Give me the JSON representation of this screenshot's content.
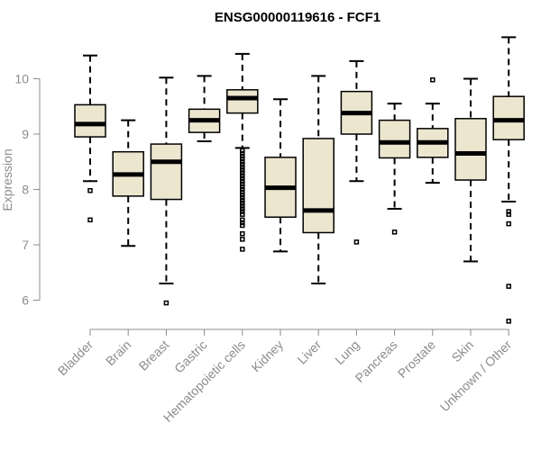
{
  "chart_data": {
    "type": "boxplot",
    "title": "ENSG00000119616 - FCF1",
    "xlabel": "",
    "ylabel": "Expression",
    "ylim": [
      5.5,
      10.9
    ],
    "yticks": [
      6,
      7,
      8,
      9,
      10
    ],
    "grid": false,
    "categories": [
      "Bladder",
      "Brain",
      "Breast",
      "Gastric",
      "Hematopoietic cells",
      "Kidney",
      "Liver",
      "Lung",
      "Pancreas",
      "Prostate",
      "Skin",
      "Unknown / Other"
    ],
    "series": [
      {
        "name": "Bladder",
        "whisker_low": 8.15,
        "q1": 8.95,
        "median": 9.18,
        "q3": 9.53,
        "whisker_high": 10.42,
        "outliers": [
          7.98,
          7.45
        ]
      },
      {
        "name": "Brain",
        "whisker_low": 6.98,
        "q1": 7.88,
        "median": 8.27,
        "q3": 8.68,
        "whisker_high": 9.25,
        "outliers": []
      },
      {
        "name": "Breast",
        "whisker_low": 6.3,
        "q1": 7.82,
        "median": 8.5,
        "q3": 8.82,
        "whisker_high": 10.02,
        "outliers": [
          5.95
        ]
      },
      {
        "name": "Gastric",
        "whisker_low": 8.87,
        "q1": 9.03,
        "median": 9.25,
        "q3": 9.45,
        "whisker_high": 10.05,
        "outliers": []
      },
      {
        "name": "Hematopoietic cells",
        "whisker_low": 8.75,
        "q1": 9.38,
        "median": 9.65,
        "q3": 9.8,
        "whisker_high": 10.45,
        "outliers": [
          8.7,
          8.65,
          8.6,
          8.55,
          8.5,
          8.45,
          8.4,
          8.35,
          8.3,
          8.25,
          8.2,
          8.15,
          8.1,
          8.05,
          8.0,
          7.95,
          7.9,
          7.85,
          7.8,
          7.75,
          7.7,
          7.65,
          7.6,
          7.55,
          7.45,
          7.4,
          7.35,
          7.2,
          7.1,
          6.92
        ]
      },
      {
        "name": "Kidney",
        "whisker_low": 6.88,
        "q1": 7.5,
        "median": 8.03,
        "q3": 8.58,
        "whisker_high": 9.63,
        "outliers": []
      },
      {
        "name": "Liver",
        "whisker_low": 6.3,
        "q1": 7.22,
        "median": 7.62,
        "q3": 8.92,
        "whisker_high": 10.05,
        "outliers": []
      },
      {
        "name": "Lung",
        "whisker_low": 8.15,
        "q1": 9.0,
        "median": 9.38,
        "q3": 9.77,
        "whisker_high": 10.32,
        "outliers": [
          7.05
        ]
      },
      {
        "name": "Pancreas",
        "whisker_low": 7.65,
        "q1": 8.57,
        "median": 8.85,
        "q3": 9.25,
        "whisker_high": 9.55,
        "outliers": [
          7.23
        ]
      },
      {
        "name": "Prostate",
        "whisker_low": 8.12,
        "q1": 8.58,
        "median": 8.85,
        "q3": 9.1,
        "whisker_high": 9.55,
        "outliers": [
          9.98
        ]
      },
      {
        "name": "Skin",
        "whisker_low": 6.7,
        "q1": 8.17,
        "median": 8.65,
        "q3": 9.28,
        "whisker_high": 10.0,
        "outliers": []
      },
      {
        "name": "Unknown / Other",
        "whisker_low": 7.78,
        "q1": 8.9,
        "median": 9.25,
        "q3": 9.68,
        "whisker_high": 10.75,
        "outliers": [
          7.6,
          7.55,
          7.38,
          6.25,
          5.62
        ]
      }
    ]
  }
}
